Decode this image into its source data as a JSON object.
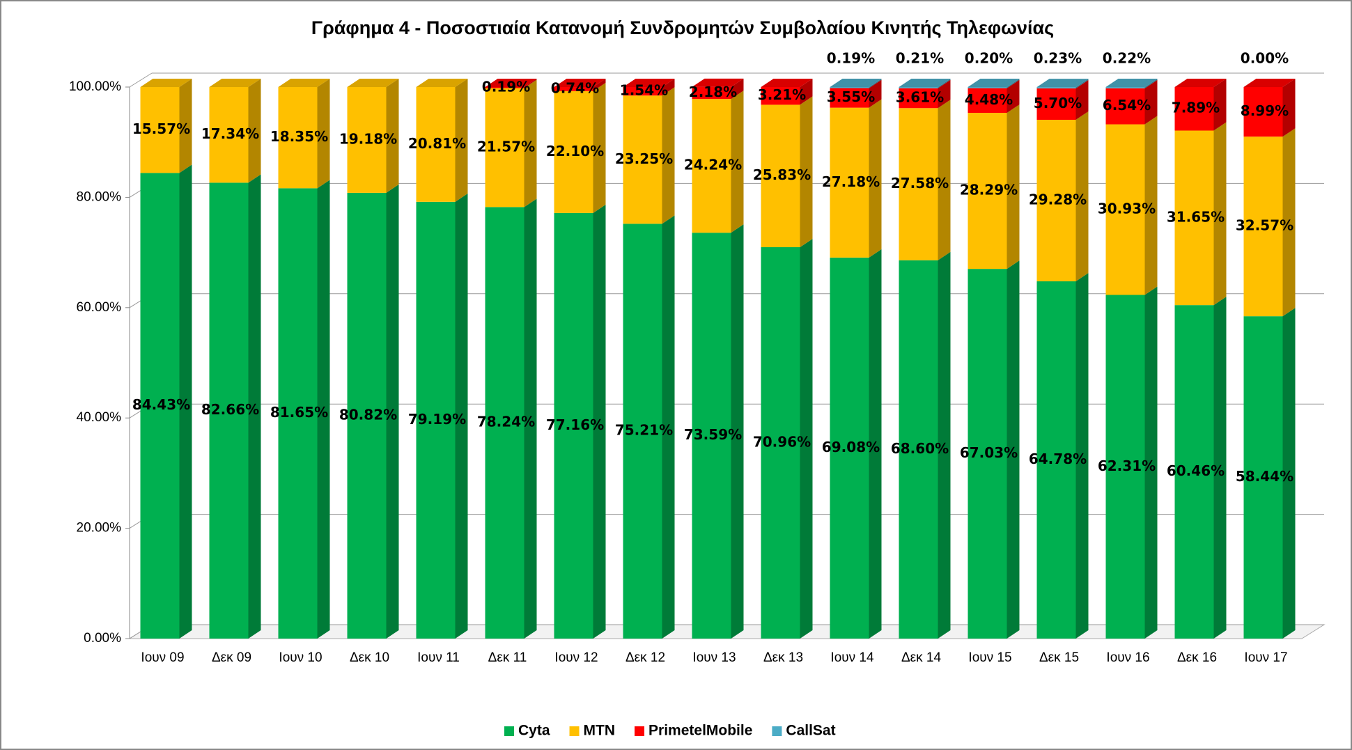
{
  "chart_data": {
    "type": "bar3d_stacked",
    "title": "Γράφημα 4 - Ποσοστιαία Κατανομή Συνδρομητών Συμβολαίου Κινητής Τηλεφωνίας",
    "categories": [
      "Ιουν 09",
      "Δεκ 09",
      "Ιουν 10",
      "Δεκ 10",
      "Ιουν 11",
      "Δεκ 11",
      "Ιουν 12",
      "Δεκ 12",
      "Ιουν 13",
      "Δεκ 13",
      "Ιουν 14",
      "Δεκ 14",
      "Ιουν 15",
      "Δεκ 15",
      "Ιουν 16",
      "Δεκ 16",
      "Ιουν 17"
    ],
    "series": [
      {
        "name": "Cyta",
        "color": "#00b050",
        "values": [
          84.43,
          82.66,
          81.65,
          80.82,
          79.19,
          78.24,
          77.16,
          75.21,
          73.59,
          70.96,
          69.08,
          68.6,
          67.03,
          64.78,
          62.31,
          60.46,
          58.44
        ],
        "value_labels": [
          "84.43%",
          "82.66%",
          "81.65%",
          "80.82%",
          "79.19%",
          "78.24%",
          "77.16%",
          "75.21%",
          "73.59%",
          "70.96%",
          "69.08%",
          "68.60%",
          "67.03%",
          "64.78%",
          "62.31%",
          "60.46%",
          "58.44%"
        ]
      },
      {
        "name": "MTN",
        "color": "#ffc000",
        "values": [
          15.57,
          17.34,
          18.35,
          19.18,
          20.81,
          21.57,
          22.1,
          23.25,
          24.24,
          25.83,
          27.18,
          27.58,
          28.29,
          29.28,
          30.93,
          31.65,
          32.57
        ],
        "value_labels": [
          "15.57%",
          "17.34%",
          "18.35%",
          "19.18%",
          "20.81%",
          "21.57%",
          "22.10%",
          "23.25%",
          "24.24%",
          "25.83%",
          "27.18%",
          "27.58%",
          "28.29%",
          "29.28%",
          "30.93%",
          "31.65%",
          "32.57%"
        ]
      },
      {
        "name": "PrimetelMobile",
        "color": "#ff0000",
        "values": [
          null,
          null,
          null,
          null,
          null,
          0.19,
          0.74,
          1.54,
          2.18,
          3.21,
          3.55,
          3.61,
          4.48,
          5.7,
          6.54,
          7.89,
          8.99
        ],
        "value_labels": [
          null,
          null,
          null,
          null,
          null,
          "0.19%",
          "0.74%",
          "1.54%",
          "2.18%",
          "3.21%",
          "3.55%",
          "3.61%",
          "4.48%",
          "5.70%",
          "6.54%",
          "7.89%",
          "8.99%"
        ]
      },
      {
        "name": "CallSat",
        "color": "#4bacc6",
        "values": [
          null,
          null,
          null,
          null,
          null,
          null,
          null,
          null,
          null,
          null,
          0.19,
          0.21,
          0.2,
          0.23,
          0.22,
          null,
          0.0
        ],
        "value_labels": [
          null,
          null,
          null,
          null,
          null,
          null,
          null,
          null,
          null,
          null,
          "0.19%",
          "0.21%",
          "0.20%",
          "0.23%",
          "0.22%",
          null,
          "0.00%"
        ]
      }
    ],
    "ylim": [
      0,
      100
    ],
    "yticks": [
      {
        "value": 0,
        "label": "0.00%"
      },
      {
        "value": 20,
        "label": "20.00%"
      },
      {
        "value": 40,
        "label": "40.00%"
      },
      {
        "value": 60,
        "label": "60.00%"
      },
      {
        "value": 80,
        "label": "80.00%"
      },
      {
        "value": 100,
        "label": "100.00%"
      }
    ],
    "grid": true,
    "legend": "bottom"
  }
}
